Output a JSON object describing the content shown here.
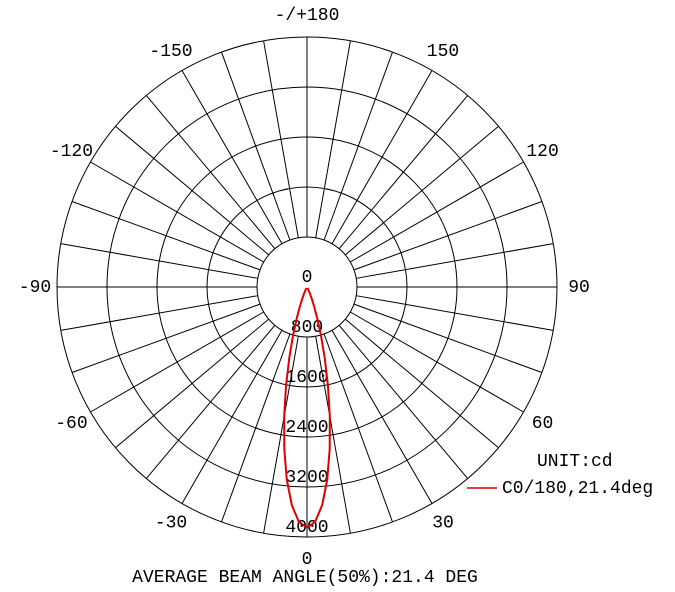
{
  "chart_data": {
    "type": "polar",
    "series": [
      {
        "name": "C0/180,21.4deg",
        "color": "#e00000",
        "angles": [
          -30,
          -28,
          -26,
          -24,
          -22,
          -20,
          -18,
          -16,
          -14,
          -12,
          -10,
          -8,
          -6,
          -4,
          -2,
          0,
          2,
          4,
          6,
          8,
          10,
          12,
          14,
          16,
          18,
          20,
          22,
          24,
          26,
          28,
          30
        ],
        "values": [
          17,
          33,
          64,
          118,
          206,
          342,
          541,
          817,
          1175,
          1610,
          2102,
          2613,
          3096,
          3495,
          3758,
          3850,
          3758,
          3495,
          3096,
          2613,
          2102,
          1610,
          1175,
          817,
          541,
          342,
          206,
          118,
          64,
          33,
          17
        ]
      }
    ],
    "rlim": [
      0,
      4000
    ],
    "rticks": [
      0,
      800,
      1600,
      2400,
      3200,
      4000
    ],
    "angle_ticks": [
      0,
      30,
      60,
      90,
      120,
      150,
      {
        "value": 180,
        "label": "-/+180"
      },
      -150,
      -120,
      -90,
      -60,
      -30
    ],
    "angle_grid": [
      -170,
      -160,
      -150,
      -140,
      -130,
      -120,
      -110,
      -100,
      -90,
      -80,
      -70,
      -60,
      -50,
      -40,
      -30,
      -20,
      -10,
      0,
      10,
      20,
      30,
      40,
      50,
      60,
      70,
      80,
      90,
      100,
      110,
      120,
      130,
      140,
      150,
      160,
      170,
      180
    ],
    "unit_label": "UNIT:cd",
    "footer": "AVERAGE BEAM ANGLE(50%):21.4 DEG"
  }
}
